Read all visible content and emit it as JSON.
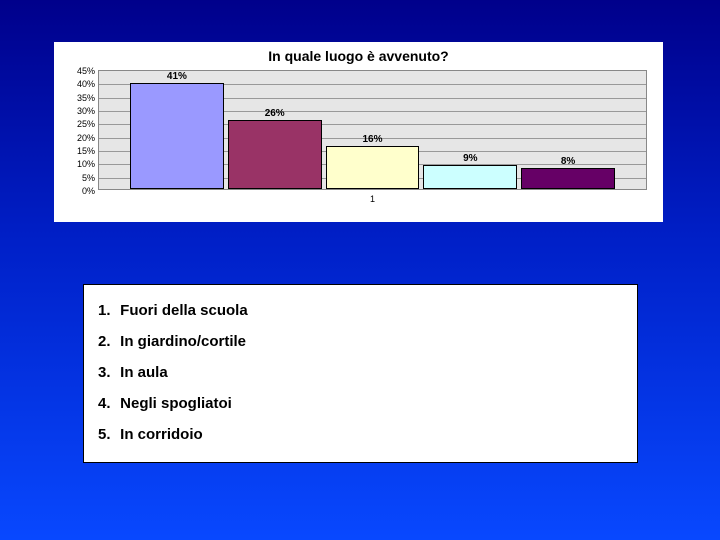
{
  "chart": {
    "type": "bar",
    "title": "In quale luogo è avvenuto?",
    "title_fontsize": 14,
    "background_color": "#ffffff",
    "plot_background": "#e6e6e6",
    "grid_color": "#999999",
    "ylim": [
      0,
      45
    ],
    "ytick_step": 5,
    "ytick_suffix": "%",
    "xaxis_label": "1",
    "bars": [
      {
        "label": "41%",
        "value": 41,
        "color": "#9a99ff"
      },
      {
        "label": "26%",
        "value": 26,
        "color": "#993366"
      },
      {
        "label": "16%",
        "value": 16,
        "color": "#ffffcc"
      },
      {
        "label": "9%",
        "value": 9,
        "color": "#ccffff"
      },
      {
        "label": "8%",
        "value": 8,
        "color": "#660066"
      }
    ]
  },
  "legend": {
    "items": [
      {
        "num": "1.",
        "text": "Fuori della scuola"
      },
      {
        "num": "2.",
        "text": "In giardino/cortile"
      },
      {
        "num": "3.",
        "text": "In aula"
      },
      {
        "num": "4.",
        "text": "Negli spogliatoi"
      },
      {
        "num": "5.",
        "text": "In corridoio"
      }
    ]
  }
}
